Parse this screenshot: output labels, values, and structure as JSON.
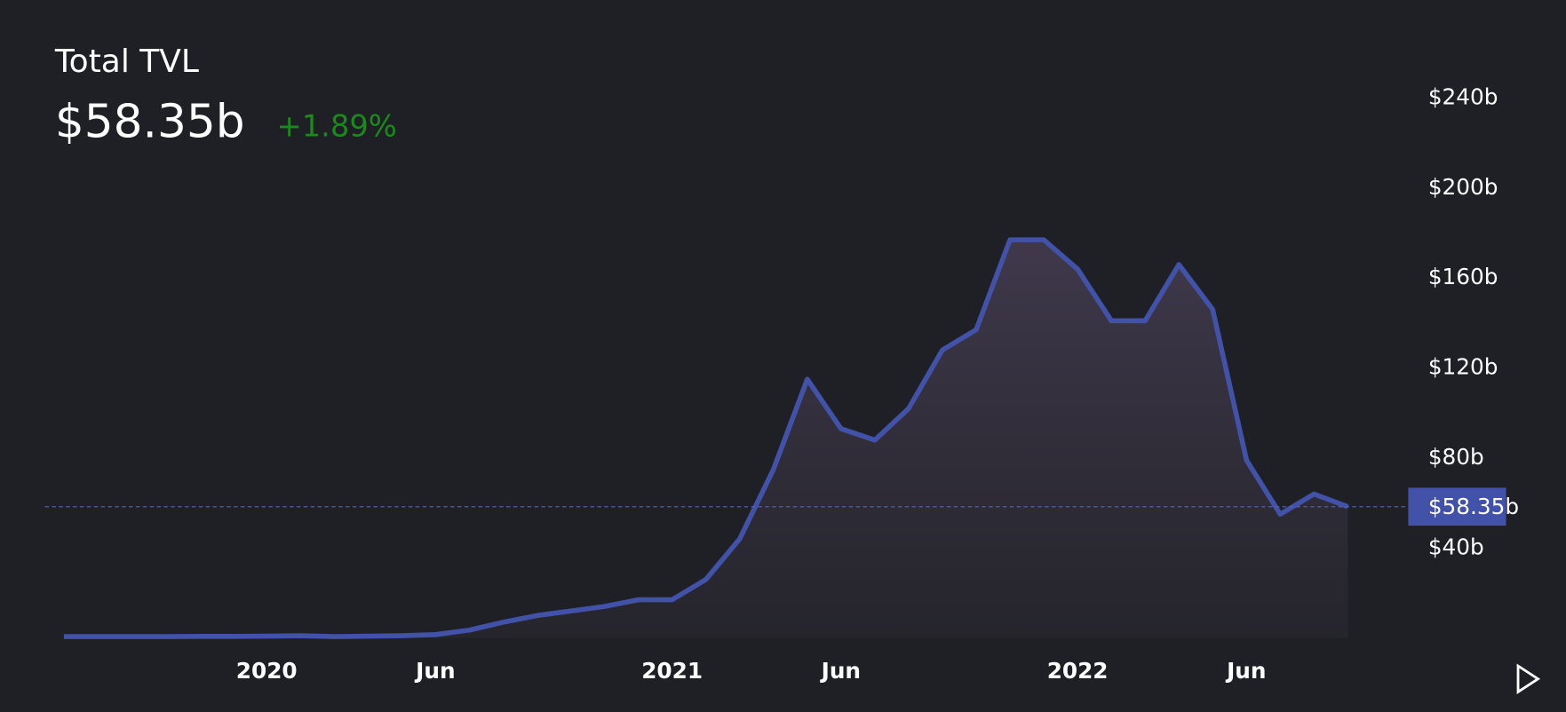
{
  "chart_data": {
    "type": "line",
    "title": "Total TVL",
    "current_value_label": "$58.35b",
    "change": "+1.89%",
    "change_color": "#1a8a1a",
    "color": "#4152a8",
    "x": [
      "2019-07",
      "2019-08",
      "2019-09",
      "2019-10",
      "2019-11",
      "2019-12",
      "2020-01",
      "2020-02",
      "2020-03",
      "2020-04",
      "2020-05",
      "2020-06",
      "2020-07",
      "2020-08",
      "2020-09",
      "2020-10",
      "2020-11",
      "2020-12",
      "2021-01",
      "2021-02",
      "2021-03",
      "2021-04",
      "2021-05",
      "2021-06",
      "2021-07",
      "2021-08",
      "2021-09",
      "2021-10",
      "2021-11",
      "2021-12",
      "2022-01",
      "2022-02",
      "2022-03",
      "2022-04",
      "2022-05",
      "2022-06",
      "2022-07",
      "2022-08",
      "2022-09"
    ],
    "values": [
      0.6,
      0.6,
      0.6,
      0.6,
      0.7,
      0.7,
      0.8,
      1.0,
      0.6,
      0.8,
      1.0,
      1.5,
      3.5,
      7,
      10,
      12,
      14,
      17,
      17,
      26,
      44,
      75,
      115,
      93,
      88,
      102,
      128,
      137,
      177,
      177,
      164,
      141,
      141,
      166,
      146,
      79,
      55,
      64,
      58.35
    ],
    "ylim": [
      0,
      260
    ],
    "yticks": [
      {
        "value": 40,
        "label": "$40b"
      },
      {
        "value": 80,
        "label": "$80b"
      },
      {
        "value": 120,
        "label": "$120b"
      },
      {
        "value": 160,
        "label": "$160b"
      },
      {
        "value": 200,
        "label": "$200b"
      },
      {
        "value": 240,
        "label": "$240b"
      }
    ],
    "xticks": [
      {
        "value": "2020-01",
        "label": "2020"
      },
      {
        "value": "2020-06",
        "label": "Jun"
      },
      {
        "value": "2021-01",
        "label": "2021"
      },
      {
        "value": "2021-06",
        "label": "Jun"
      },
      {
        "value": "2022-01",
        "label": "2022"
      },
      {
        "value": "2022-06",
        "label": "Jun"
      }
    ]
  }
}
